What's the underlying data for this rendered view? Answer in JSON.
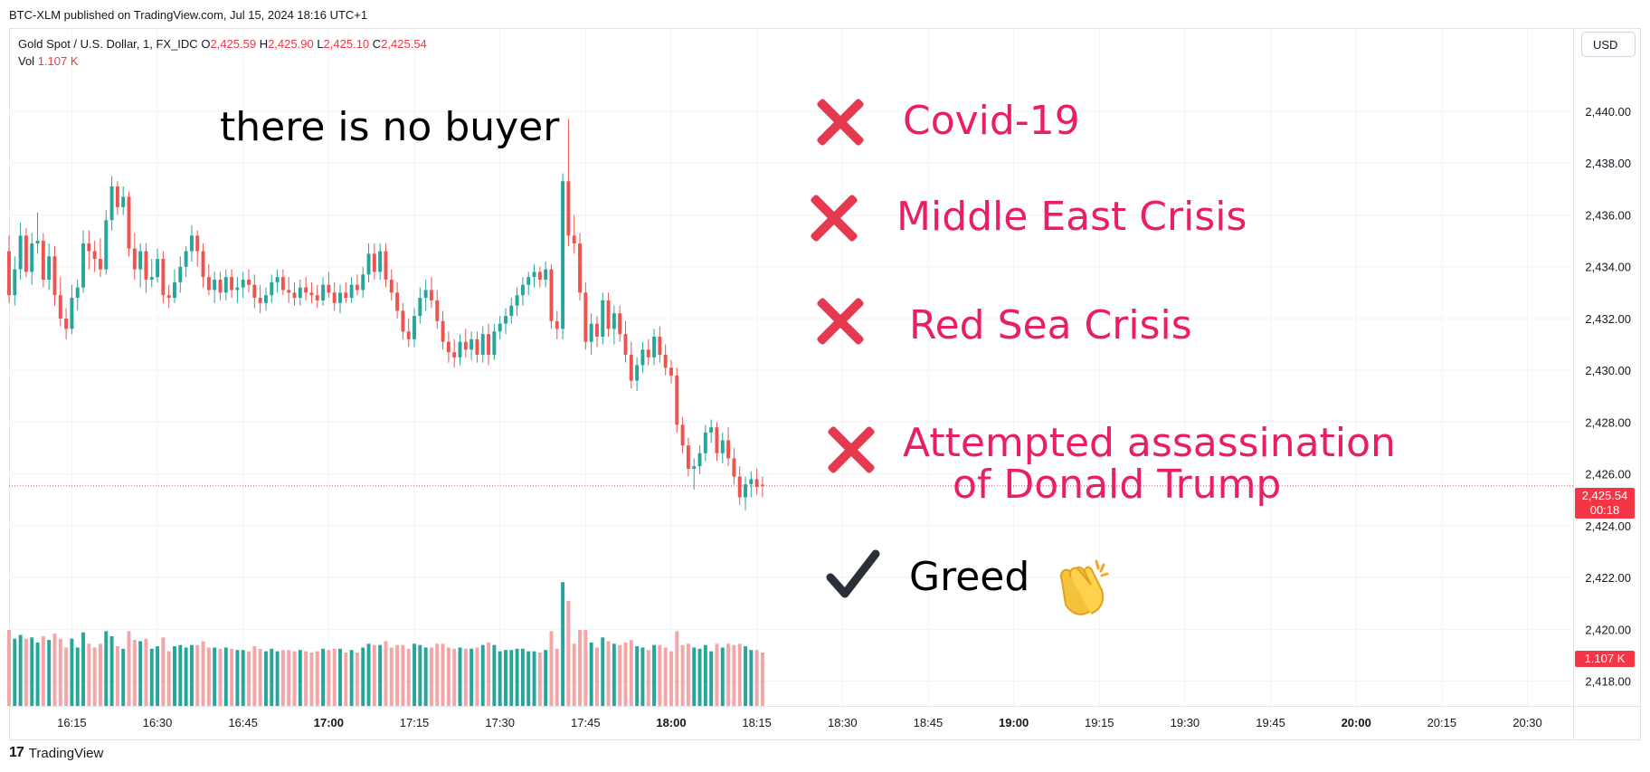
{
  "header": {
    "published": "BTC-XLM published on TradingView.com, Jul 15, 2024 18:16 UTC+1"
  },
  "legend": {
    "symbol": "Gold Spot / U.S. Dollar, 1, FX_IDC",
    "o_label": "O",
    "o_value": "2,425.59",
    "h_label": "H",
    "h_value": "2,425.90",
    "l_label": "L",
    "l_value": "2,425.10",
    "c_label": "C",
    "c_value": "2,425.54",
    "vol_label": "Vol",
    "vol_value": "1.107 K"
  },
  "currency_button": "USD",
  "price_badge": {
    "price": "2,425.54",
    "countdown": "00:18"
  },
  "volume_badge": "1.107 K",
  "annotations": {
    "title": "there is no buyer",
    "reasons": [
      "Covid-19",
      "Middle East Crisis",
      "Red Sea Crisis",
      "Attempted assassination",
      "of Donald Trump"
    ],
    "greed": "Greed",
    "icons": {
      "cross": "cross-mark-icon",
      "check": "check-mark-icon",
      "clap": "clapping-hands-icon"
    }
  },
  "footer": {
    "brand": "TradingView",
    "logo_mark": "17"
  },
  "colors": {
    "up": "#26a69a",
    "down": "#ef5350",
    "vol_up": "#26a69a",
    "vol_down": "#f5a5a5",
    "accent": "#e91e63",
    "cross": "#e53950"
  },
  "chart_data": {
    "type": "candlestick",
    "symbol": "Gold Spot / U.S. Dollar, 1, FX_IDC",
    "y_ticks": [
      2418,
      2420,
      2422,
      2424,
      2426,
      2428,
      2430,
      2432,
      2434,
      2436,
      2438,
      2440
    ],
    "y_tick_labels": [
      "2,418.00",
      "2,420.00",
      "2,422.00",
      "2,424.00",
      "2,426.00",
      "2,428.00",
      "2,430.00",
      "2,432.00",
      "2,434.00",
      "2,436.00",
      "2,438.00",
      "2,440.00"
    ],
    "ylim": [
      2416.8,
      2442.2
    ],
    "x_ticks": [
      "16:15",
      "16:30",
      "16:45",
      "17:00",
      "17:15",
      "17:30",
      "17:45",
      "18:00",
      "18:15",
      "18:30",
      "18:45",
      "19:00",
      "19:15",
      "19:30",
      "19:45",
      "20:00",
      "20:15",
      "20:30"
    ],
    "x_ticks_bold": [
      "17:00",
      "18:00",
      "19:00",
      "20:00"
    ],
    "x_start": "16:04",
    "x_end": "20:38",
    "last_price": 2425.54,
    "candles": [
      {
        "t": "16:04",
        "o": 2434.6,
        "h": 2435.2,
        "l": 2432.6,
        "c": 2432.9
      },
      {
        "t": "16:05",
        "o": 2432.9,
        "h": 2434.4,
        "l": 2432.5,
        "c": 2433.9
      },
      {
        "t": "16:06",
        "o": 2433.9,
        "h": 2435.7,
        "l": 2433.5,
        "c": 2435.2
      },
      {
        "t": "16:07",
        "o": 2435.2,
        "h": 2435.5,
        "l": 2433.6,
        "c": 2433.8
      },
      {
        "t": "16:08",
        "o": 2433.8,
        "h": 2435.3,
        "l": 2433.3,
        "c": 2434.9
      },
      {
        "t": "16:09",
        "o": 2434.9,
        "h": 2436.1,
        "l": 2434.5,
        "c": 2435.0
      },
      {
        "t": "16:10",
        "o": 2435.0,
        "h": 2435.3,
        "l": 2433.2,
        "c": 2433.5
      },
      {
        "t": "16:11",
        "o": 2433.5,
        "h": 2434.9,
        "l": 2433.1,
        "c": 2434.4
      },
      {
        "t": "16:12",
        "o": 2434.4,
        "h": 2434.8,
        "l": 2432.5,
        "c": 2432.9
      },
      {
        "t": "16:13",
        "o": 2432.9,
        "h": 2433.6,
        "l": 2431.7,
        "c": 2432.0
      },
      {
        "t": "16:14",
        "o": 2432.0,
        "h": 2432.4,
        "l": 2431.2,
        "c": 2431.6
      },
      {
        "t": "16:15",
        "o": 2431.6,
        "h": 2433.3,
        "l": 2431.4,
        "c": 2432.8
      },
      {
        "t": "16:16",
        "o": 2432.8,
        "h": 2433.5,
        "l": 2432.3,
        "c": 2433.2
      },
      {
        "t": "16:17",
        "o": 2433.2,
        "h": 2435.4,
        "l": 2433.0,
        "c": 2434.9
      },
      {
        "t": "16:18",
        "o": 2434.9,
        "h": 2435.4,
        "l": 2433.9,
        "c": 2434.6
      },
      {
        "t": "16:19",
        "o": 2434.6,
        "h": 2435.0,
        "l": 2433.8,
        "c": 2434.3
      },
      {
        "t": "16:20",
        "o": 2434.3,
        "h": 2435.1,
        "l": 2433.6,
        "c": 2433.9
      },
      {
        "t": "16:21",
        "o": 2433.9,
        "h": 2436.2,
        "l": 2433.7,
        "c": 2435.8
      },
      {
        "t": "16:22",
        "o": 2435.8,
        "h": 2437.5,
        "l": 2435.4,
        "c": 2437.1
      },
      {
        "t": "16:23",
        "o": 2437.1,
        "h": 2437.3,
        "l": 2436.0,
        "c": 2436.3
      },
      {
        "t": "16:24",
        "o": 2436.3,
        "h": 2437.1,
        "l": 2436.0,
        "c": 2436.7
      },
      {
        "t": "16:25",
        "o": 2436.7,
        "h": 2436.9,
        "l": 2434.4,
        "c": 2434.7
      },
      {
        "t": "16:26",
        "o": 2434.7,
        "h": 2435.3,
        "l": 2433.5,
        "c": 2433.9
      },
      {
        "t": "16:27",
        "o": 2433.9,
        "h": 2434.9,
        "l": 2433.2,
        "c": 2434.6
      },
      {
        "t": "16:28",
        "o": 2434.6,
        "h": 2434.9,
        "l": 2433.0,
        "c": 2433.5
      },
      {
        "t": "16:29",
        "o": 2433.5,
        "h": 2434.3,
        "l": 2433.2,
        "c": 2433.6
      },
      {
        "t": "16:30",
        "o": 2433.6,
        "h": 2434.7,
        "l": 2433.4,
        "c": 2434.3
      },
      {
        "t": "16:31",
        "o": 2434.3,
        "h": 2434.6,
        "l": 2432.6,
        "c": 2432.9
      },
      {
        "t": "16:32",
        "o": 2432.9,
        "h": 2433.3,
        "l": 2432.4,
        "c": 2432.8
      },
      {
        "t": "16:33",
        "o": 2432.8,
        "h": 2433.9,
        "l": 2432.6,
        "c": 2433.4
      },
      {
        "t": "16:34",
        "o": 2433.4,
        "h": 2434.4,
        "l": 2433.0,
        "c": 2434.0
      },
      {
        "t": "16:35",
        "o": 2434.0,
        "h": 2434.8,
        "l": 2433.6,
        "c": 2434.6
      },
      {
        "t": "16:36",
        "o": 2434.6,
        "h": 2435.6,
        "l": 2434.2,
        "c": 2435.2
      },
      {
        "t": "16:37",
        "o": 2435.2,
        "h": 2435.4,
        "l": 2434.0,
        "c": 2434.6
      },
      {
        "t": "16:38",
        "o": 2434.6,
        "h": 2434.9,
        "l": 2433.2,
        "c": 2433.6
      },
      {
        "t": "16:39",
        "o": 2433.6,
        "h": 2434.1,
        "l": 2432.9,
        "c": 2433.1
      },
      {
        "t": "16:40",
        "o": 2433.1,
        "h": 2433.8,
        "l": 2432.6,
        "c": 2433.5
      },
      {
        "t": "16:41",
        "o": 2433.5,
        "h": 2433.8,
        "l": 2432.7,
        "c": 2433.0
      },
      {
        "t": "16:42",
        "o": 2433.0,
        "h": 2433.9,
        "l": 2432.7,
        "c": 2433.6
      },
      {
        "t": "16:43",
        "o": 2433.6,
        "h": 2433.9,
        "l": 2432.8,
        "c": 2433.1
      },
      {
        "t": "16:44",
        "o": 2433.1,
        "h": 2433.6,
        "l": 2432.6,
        "c": 2433.2
      },
      {
        "t": "16:45",
        "o": 2433.2,
        "h": 2433.8,
        "l": 2432.8,
        "c": 2433.5
      },
      {
        "t": "16:46",
        "o": 2433.5,
        "h": 2433.9,
        "l": 2433.0,
        "c": 2433.3
      },
      {
        "t": "16:47",
        "o": 2433.3,
        "h": 2433.7,
        "l": 2432.4,
        "c": 2432.8
      },
      {
        "t": "16:48",
        "o": 2432.8,
        "h": 2433.3,
        "l": 2432.2,
        "c": 2432.6
      },
      {
        "t": "16:49",
        "o": 2432.6,
        "h": 2433.2,
        "l": 2432.3,
        "c": 2432.9
      },
      {
        "t": "16:50",
        "o": 2432.9,
        "h": 2433.7,
        "l": 2432.6,
        "c": 2433.4
      },
      {
        "t": "16:51",
        "o": 2433.4,
        "h": 2433.9,
        "l": 2433.0,
        "c": 2433.6
      },
      {
        "t": "16:52",
        "o": 2433.6,
        "h": 2433.9,
        "l": 2432.9,
        "c": 2433.1
      },
      {
        "t": "16:53",
        "o": 2433.1,
        "h": 2433.6,
        "l": 2432.6,
        "c": 2433.0
      },
      {
        "t": "16:54",
        "o": 2433.0,
        "h": 2433.4,
        "l": 2432.5,
        "c": 2432.8
      },
      {
        "t": "16:55",
        "o": 2432.8,
        "h": 2433.5,
        "l": 2432.5,
        "c": 2433.2
      },
      {
        "t": "16:56",
        "o": 2433.2,
        "h": 2433.6,
        "l": 2432.7,
        "c": 2433.0
      },
      {
        "t": "16:57",
        "o": 2433.0,
        "h": 2433.4,
        "l": 2432.6,
        "c": 2432.9
      },
      {
        "t": "16:58",
        "o": 2432.9,
        "h": 2433.3,
        "l": 2432.4,
        "c": 2432.7
      },
      {
        "t": "16:59",
        "o": 2432.7,
        "h": 2433.6,
        "l": 2432.5,
        "c": 2433.3
      },
      {
        "t": "17:00",
        "o": 2433.3,
        "h": 2433.8,
        "l": 2432.8,
        "c": 2433.0
      },
      {
        "t": "17:01",
        "o": 2433.0,
        "h": 2433.4,
        "l": 2432.3,
        "c": 2432.6
      },
      {
        "t": "17:02",
        "o": 2432.6,
        "h": 2433.3,
        "l": 2432.2,
        "c": 2433.0
      },
      {
        "t": "17:03",
        "o": 2433.0,
        "h": 2433.4,
        "l": 2432.6,
        "c": 2432.8
      },
      {
        "t": "17:04",
        "o": 2432.8,
        "h": 2433.6,
        "l": 2432.6,
        "c": 2433.3
      },
      {
        "t": "17:05",
        "o": 2433.3,
        "h": 2433.7,
        "l": 2432.9,
        "c": 2433.1
      },
      {
        "t": "17:06",
        "o": 2433.1,
        "h": 2434.0,
        "l": 2432.8,
        "c": 2433.7
      },
      {
        "t": "17:07",
        "o": 2433.7,
        "h": 2434.9,
        "l": 2433.4,
        "c": 2434.5
      },
      {
        "t": "17:08",
        "o": 2434.5,
        "h": 2434.9,
        "l": 2433.5,
        "c": 2433.8
      },
      {
        "t": "17:09",
        "o": 2433.8,
        "h": 2434.9,
        "l": 2433.5,
        "c": 2434.6
      },
      {
        "t": "17:10",
        "o": 2434.6,
        "h": 2434.9,
        "l": 2433.2,
        "c": 2433.5
      },
      {
        "t": "17:11",
        "o": 2433.5,
        "h": 2433.9,
        "l": 2432.7,
        "c": 2433.0
      },
      {
        "t": "17:12",
        "o": 2433.0,
        "h": 2433.4,
        "l": 2432.0,
        "c": 2432.3
      },
      {
        "t": "17:13",
        "o": 2432.3,
        "h": 2432.6,
        "l": 2431.2,
        "c": 2431.5
      },
      {
        "t": "17:14",
        "o": 2431.5,
        "h": 2432.0,
        "l": 2430.9,
        "c": 2431.2
      },
      {
        "t": "17:15",
        "o": 2431.2,
        "h": 2432.4,
        "l": 2430.9,
        "c": 2432.1
      },
      {
        "t": "17:16",
        "o": 2432.1,
        "h": 2433.2,
        "l": 2431.8,
        "c": 2432.8
      },
      {
        "t": "17:17",
        "o": 2432.8,
        "h": 2433.5,
        "l": 2432.3,
        "c": 2433.1
      },
      {
        "t": "17:18",
        "o": 2433.1,
        "h": 2433.6,
        "l": 2432.4,
        "c": 2432.7
      },
      {
        "t": "17:19",
        "o": 2432.7,
        "h": 2433.1,
        "l": 2431.6,
        "c": 2431.9
      },
      {
        "t": "17:20",
        "o": 2431.9,
        "h": 2432.3,
        "l": 2430.8,
        "c": 2431.1
      },
      {
        "t": "17:21",
        "o": 2431.1,
        "h": 2431.5,
        "l": 2430.3,
        "c": 2430.7
      },
      {
        "t": "17:22",
        "o": 2430.7,
        "h": 2431.2,
        "l": 2430.1,
        "c": 2430.5
      },
      {
        "t": "17:23",
        "o": 2430.5,
        "h": 2431.4,
        "l": 2430.2,
        "c": 2431.1
      },
      {
        "t": "17:24",
        "o": 2431.1,
        "h": 2431.6,
        "l": 2430.5,
        "c": 2430.8
      },
      {
        "t": "17:25",
        "o": 2430.8,
        "h": 2431.5,
        "l": 2430.4,
        "c": 2431.2
      },
      {
        "t": "17:26",
        "o": 2431.2,
        "h": 2431.5,
        "l": 2430.3,
        "c": 2430.6
      },
      {
        "t": "17:27",
        "o": 2430.6,
        "h": 2431.7,
        "l": 2430.3,
        "c": 2431.4
      },
      {
        "t": "17:28",
        "o": 2431.4,
        "h": 2431.8,
        "l": 2430.2,
        "c": 2430.6
      },
      {
        "t": "17:29",
        "o": 2430.6,
        "h": 2431.8,
        "l": 2430.4,
        "c": 2431.5
      },
      {
        "t": "17:30",
        "o": 2431.5,
        "h": 2432.1,
        "l": 2431.2,
        "c": 2431.8
      },
      {
        "t": "17:31",
        "o": 2431.8,
        "h": 2432.4,
        "l": 2431.4,
        "c": 2432.1
      },
      {
        "t": "17:32",
        "o": 2432.1,
        "h": 2432.8,
        "l": 2431.8,
        "c": 2432.5
      },
      {
        "t": "17:33",
        "o": 2432.5,
        "h": 2433.2,
        "l": 2432.1,
        "c": 2432.9
      },
      {
        "t": "17:34",
        "o": 2432.9,
        "h": 2433.6,
        "l": 2432.5,
        "c": 2433.3
      },
      {
        "t": "17:35",
        "o": 2433.3,
        "h": 2433.8,
        "l": 2432.9,
        "c": 2433.6
      },
      {
        "t": "17:36",
        "o": 2433.6,
        "h": 2434.1,
        "l": 2433.2,
        "c": 2433.8
      },
      {
        "t": "17:37",
        "o": 2433.8,
        "h": 2434.0,
        "l": 2433.2,
        "c": 2433.5
      },
      {
        "t": "17:38",
        "o": 2433.5,
        "h": 2434.2,
        "l": 2433.2,
        "c": 2433.9
      },
      {
        "t": "17:39",
        "o": 2433.9,
        "h": 2434.1,
        "l": 2431.6,
        "c": 2431.9
      },
      {
        "t": "17:40",
        "o": 2431.9,
        "h": 2432.3,
        "l": 2431.2,
        "c": 2431.6
      },
      {
        "t": "17:41",
        "o": 2431.6,
        "h": 2437.6,
        "l": 2431.2,
        "c": 2437.3
      },
      {
        "t": "17:42",
        "o": 2437.3,
        "h": 2439.7,
        "l": 2434.8,
        "c": 2435.2
      },
      {
        "t": "17:43",
        "o": 2435.2,
        "h": 2436.0,
        "l": 2434.5,
        "c": 2434.9
      },
      {
        "t": "17:44",
        "o": 2434.9,
        "h": 2435.3,
        "l": 2432.7,
        "c": 2433.0
      },
      {
        "t": "17:45",
        "o": 2433.0,
        "h": 2433.4,
        "l": 2430.8,
        "c": 2431.1
      },
      {
        "t": "17:46",
        "o": 2431.1,
        "h": 2432.2,
        "l": 2430.6,
        "c": 2431.8
      },
      {
        "t": "17:47",
        "o": 2431.8,
        "h": 2432.1,
        "l": 2430.9,
        "c": 2431.3
      },
      {
        "t": "17:48",
        "o": 2431.3,
        "h": 2433.0,
        "l": 2431.0,
        "c": 2432.7
      },
      {
        "t": "17:49",
        "o": 2432.7,
        "h": 2433.0,
        "l": 2431.3,
        "c": 2431.6
      },
      {
        "t": "17:50",
        "o": 2431.6,
        "h": 2432.5,
        "l": 2431.0,
        "c": 2432.2
      },
      {
        "t": "17:51",
        "o": 2432.2,
        "h": 2432.5,
        "l": 2431.1,
        "c": 2431.4
      },
      {
        "t": "17:52",
        "o": 2431.4,
        "h": 2431.9,
        "l": 2430.3,
        "c": 2430.6
      },
      {
        "t": "17:53",
        "o": 2430.6,
        "h": 2431.1,
        "l": 2429.3,
        "c": 2429.6
      },
      {
        "t": "17:54",
        "o": 2429.6,
        "h": 2430.5,
        "l": 2429.2,
        "c": 2430.2
      },
      {
        "t": "17:55",
        "o": 2430.2,
        "h": 2431.1,
        "l": 2429.9,
        "c": 2430.8
      },
      {
        "t": "17:56",
        "o": 2430.8,
        "h": 2431.2,
        "l": 2430.2,
        "c": 2430.5
      },
      {
        "t": "17:57",
        "o": 2430.5,
        "h": 2431.6,
        "l": 2430.2,
        "c": 2431.3
      },
      {
        "t": "17:58",
        "o": 2431.3,
        "h": 2431.7,
        "l": 2430.3,
        "c": 2430.6
      },
      {
        "t": "17:59",
        "o": 2430.6,
        "h": 2431.0,
        "l": 2429.8,
        "c": 2430.1
      },
      {
        "t": "18:00",
        "o": 2430.1,
        "h": 2430.4,
        "l": 2429.5,
        "c": 2429.8
      },
      {
        "t": "18:01",
        "o": 2429.8,
        "h": 2430.1,
        "l": 2427.6,
        "c": 2427.9
      },
      {
        "t": "18:02",
        "o": 2427.9,
        "h": 2428.2,
        "l": 2426.8,
        "c": 2427.1
      },
      {
        "t": "18:03",
        "o": 2427.1,
        "h": 2427.4,
        "l": 2425.9,
        "c": 2426.2
      },
      {
        "t": "18:04",
        "o": 2426.2,
        "h": 2426.6,
        "l": 2425.4,
        "c": 2426.3
      },
      {
        "t": "18:05",
        "o": 2426.3,
        "h": 2427.1,
        "l": 2426.0,
        "c": 2426.8
      },
      {
        "t": "18:06",
        "o": 2426.8,
        "h": 2427.9,
        "l": 2426.5,
        "c": 2427.6
      },
      {
        "t": "18:07",
        "o": 2427.6,
        "h": 2428.1,
        "l": 2427.2,
        "c": 2427.8
      },
      {
        "t": "18:08",
        "o": 2427.8,
        "h": 2428.0,
        "l": 2426.5,
        "c": 2426.8
      },
      {
        "t": "18:09",
        "o": 2426.8,
        "h": 2427.6,
        "l": 2426.4,
        "c": 2427.3
      },
      {
        "t": "18:10",
        "o": 2427.3,
        "h": 2427.8,
        "l": 2426.3,
        "c": 2426.6
      },
      {
        "t": "18:11",
        "o": 2426.6,
        "h": 2427.0,
        "l": 2425.6,
        "c": 2425.9
      },
      {
        "t": "18:12",
        "o": 2425.9,
        "h": 2426.3,
        "l": 2424.8,
        "c": 2425.1
      },
      {
        "t": "18:13",
        "o": 2425.1,
        "h": 2425.9,
        "l": 2424.6,
        "c": 2425.6
      },
      {
        "t": "18:14",
        "o": 2425.6,
        "h": 2426.1,
        "l": 2425.1,
        "c": 2425.8
      },
      {
        "t": "18:15",
        "o": 2425.8,
        "h": 2426.2,
        "l": 2425.2,
        "c": 2425.5
      },
      {
        "t": "18:16",
        "o": 2425.59,
        "h": 2425.9,
        "l": 2425.1,
        "c": 2425.54
      }
    ]
  }
}
